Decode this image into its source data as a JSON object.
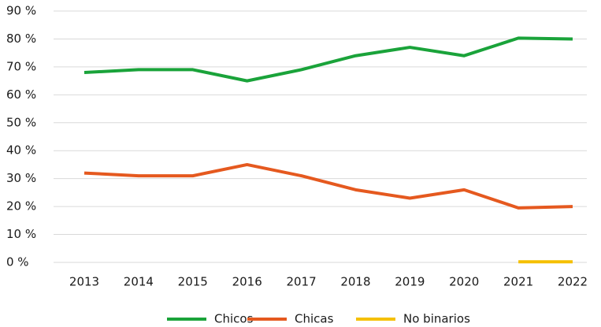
{
  "chart_data": {
    "type": "line",
    "categories": [
      "2013",
      "2014",
      "2015",
      "2016",
      "2017",
      "2018",
      "2019",
      "2020",
      "2021",
      "2022"
    ],
    "series": [
      {
        "name": "Chicos",
        "color": "#1aa33a",
        "values": [
          68,
          69,
          69,
          65,
          69,
          74,
          77,
          74,
          80.3,
          80
        ]
      },
      {
        "name": "Chicas",
        "color": "#e5591f",
        "values": [
          32,
          31,
          31,
          35,
          31,
          26,
          23,
          26,
          19.5,
          20
        ]
      },
      {
        "name": "No binarios",
        "color": "#f5c000",
        "values": [
          null,
          null,
          null,
          null,
          null,
          null,
          null,
          null,
          0.2,
          0.2
        ]
      }
    ],
    "ylim": [
      0,
      90
    ],
    "yticks": [
      {
        "value": 0,
        "label": "0 %"
      },
      {
        "value": 10,
        "label": "10 %"
      },
      {
        "value": 20,
        "label": "20 %"
      },
      {
        "value": 30,
        "label": "30 %"
      },
      {
        "value": 40,
        "label": "40 %"
      },
      {
        "value": 50,
        "label": "50 %"
      },
      {
        "value": 60,
        "label": "60 %"
      },
      {
        "value": 70,
        "label": "70 %"
      },
      {
        "value": 80,
        "label": "80 %"
      },
      {
        "value": 90,
        "label": "90 %"
      }
    ],
    "grid": true,
    "legend": "bottom"
  }
}
